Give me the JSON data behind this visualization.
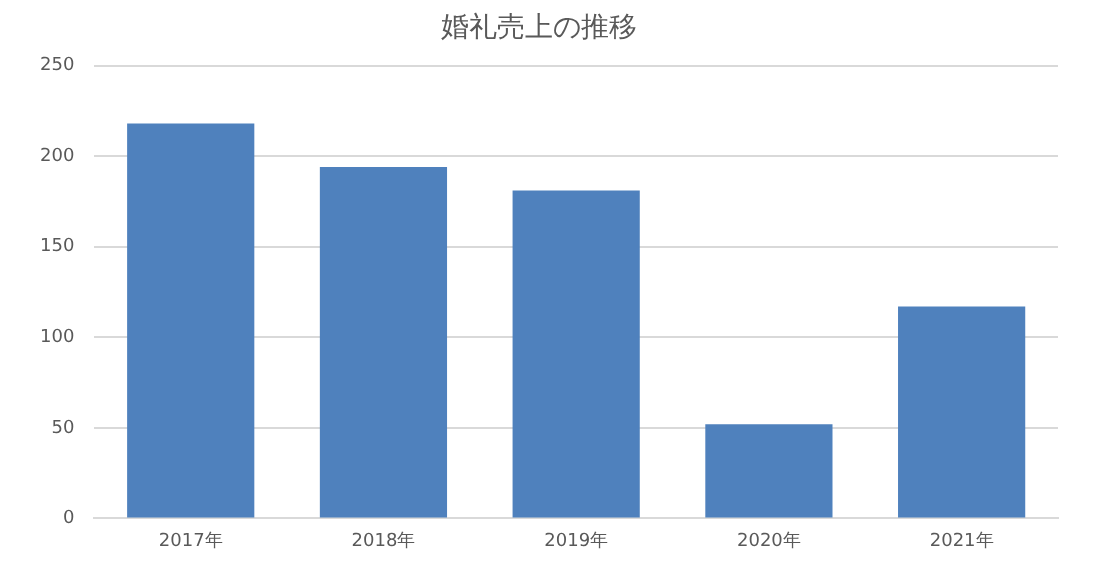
{
  "chart_data": {
    "type": "bar",
    "title": "婚礼売上の推移",
    "categories": [
      "2017年",
      "2018年",
      "2019年",
      "2020年",
      "2021年"
    ],
    "values": [
      218,
      194,
      181,
      52,
      117
    ],
    "color": "#4f81bd",
    "ylim": [
      0,
      250
    ],
    "yticks": [
      0,
      50,
      100,
      150,
      200,
      250
    ],
    "grid": "y",
    "legend": false
  }
}
